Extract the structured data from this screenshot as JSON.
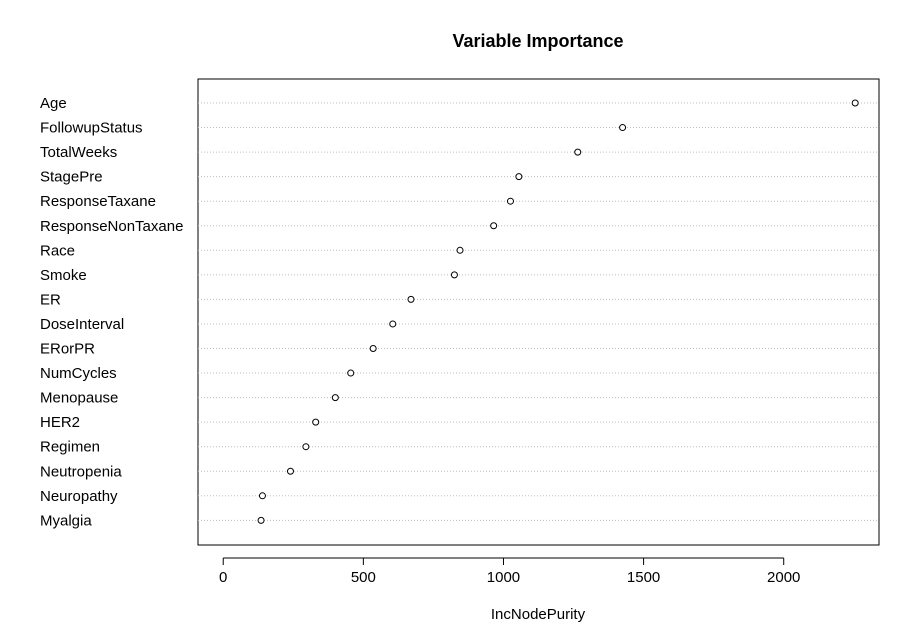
{
  "chart_data": {
    "type": "scatter",
    "title": "Variable Importance",
    "xlabel": "IncNodePurity",
    "ylabel": "",
    "xlim": [
      -90,
      2340
    ],
    "x_ticks": [
      0,
      500,
      1000,
      1500,
      2000
    ],
    "grid": "dotted horizontal",
    "categories": [
      "Age",
      "FollowupStatus",
      "TotalWeeks",
      "StagePre",
      "ResponseTaxane",
      "ResponseNonTaxane",
      "Race",
      "Smoke",
      "ER",
      "DoseInterval",
      "ERorPR",
      "NumCycles",
      "Menopause",
      "HER2",
      "Regimen",
      "Neutropenia",
      "Neuropathy",
      "Myalgia"
    ],
    "values": [
      2255,
      1425,
      1265,
      1055,
      1025,
      965,
      845,
      825,
      670,
      605,
      535,
      455,
      400,
      330,
      295,
      240,
      140,
      135
    ]
  }
}
